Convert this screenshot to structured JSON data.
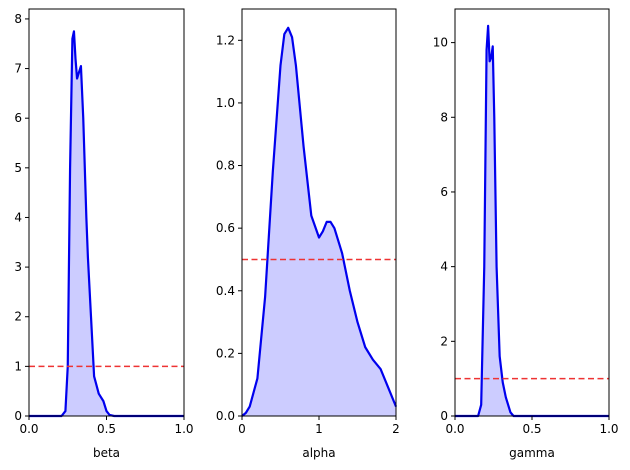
{
  "chart_data": [
    {
      "type": "area",
      "xlabel": "beta",
      "ylabel": "",
      "xlim": [
        0.0,
        1.0
      ],
      "ylim": [
        0,
        8.2
      ],
      "xticks": [
        0.0,
        0.5,
        1.0
      ],
      "xtick_labels": [
        "0.0",
        "0.5",
        "1.0"
      ],
      "yticks": [
        0,
        1,
        2,
        3,
        4,
        5,
        6,
        7,
        8
      ],
      "ytick_labels": [
        "0",
        "1",
        "2",
        "3",
        "4",
        "5",
        "6",
        "7",
        "8"
      ],
      "density": {
        "x": [
          0.0,
          0.21,
          0.235,
          0.25,
          0.265,
          0.28,
          0.29,
          0.3,
          0.31,
          0.32,
          0.335,
          0.35,
          0.37,
          0.38,
          0.4,
          0.42,
          0.45,
          0.48,
          0.5,
          0.52,
          0.55,
          1.0
        ],
        "y": [
          0,
          0,
          0.1,
          1.0,
          5.0,
          7.6,
          7.75,
          7.2,
          6.8,
          6.9,
          7.05,
          6.0,
          4.0,
          3.2,
          2.0,
          0.8,
          0.45,
          0.3,
          0.1,
          0.02,
          0,
          0
        ]
      },
      "reference_line": 1.0,
      "grid": false
    },
    {
      "type": "area",
      "xlabel": "alpha",
      "ylabel": "",
      "xlim": [
        0,
        2
      ],
      "ylim": [
        0,
        1.3
      ],
      "xticks": [
        0,
        1,
        2
      ],
      "xtick_labels": [
        "0",
        "1",
        "2"
      ],
      "yticks": [
        0.0,
        0.2,
        0.4,
        0.6,
        0.8,
        1.0,
        1.2
      ],
      "ytick_labels": [
        "0.0",
        "0.2",
        "0.4",
        "0.6",
        "0.8",
        "1.0",
        "1.2"
      ],
      "density": {
        "x": [
          0.0,
          0.05,
          0.1,
          0.2,
          0.3,
          0.4,
          0.5,
          0.55,
          0.6,
          0.65,
          0.7,
          0.8,
          0.9,
          1.0,
          1.05,
          1.1,
          1.15,
          1.2,
          1.3,
          1.4,
          1.5,
          1.6,
          1.7,
          1.8,
          1.9,
          2.0
        ],
        "y": [
          0.0,
          0.01,
          0.03,
          0.12,
          0.38,
          0.78,
          1.12,
          1.22,
          1.24,
          1.21,
          1.12,
          0.86,
          0.64,
          0.57,
          0.59,
          0.62,
          0.62,
          0.6,
          0.52,
          0.4,
          0.3,
          0.22,
          0.18,
          0.15,
          0.09,
          0.03
        ]
      },
      "reference_line": 0.5,
      "grid": false
    },
    {
      "type": "area",
      "xlabel": "gamma",
      "ylabel": "",
      "xlim": [
        0.0,
        1.0
      ],
      "ylim": [
        0,
        10.9
      ],
      "xticks": [
        0.0,
        0.5,
        1.0
      ],
      "xtick_labels": [
        "0.0",
        "0.5",
        "1.0"
      ],
      "yticks": [
        0,
        2,
        4,
        6,
        8,
        10
      ],
      "ytick_labels": [
        "0",
        "2",
        "4",
        "6",
        "8",
        "10"
      ],
      "density": {
        "x": [
          0.0,
          0.15,
          0.17,
          0.19,
          0.205,
          0.215,
          0.225,
          0.235,
          0.245,
          0.255,
          0.27,
          0.29,
          0.31,
          0.33,
          0.36,
          0.38,
          1.0
        ],
        "y": [
          0,
          0,
          0.3,
          4.0,
          9.8,
          10.45,
          9.5,
          9.6,
          9.9,
          8.0,
          4.0,
          1.6,
          0.9,
          0.5,
          0.1,
          0,
          0
        ]
      },
      "reference_line": 1.0,
      "grid": false
    }
  ],
  "style": {
    "line_color": "#0000ee",
    "fill_color": "#ccccff",
    "reference_color": "#ee3333"
  }
}
